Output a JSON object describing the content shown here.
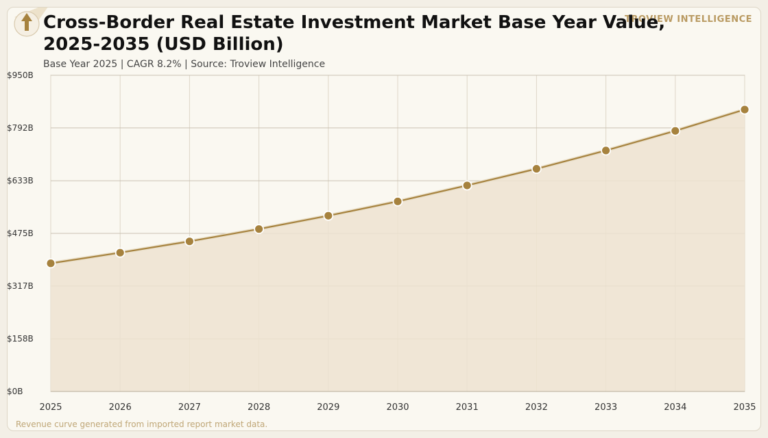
{
  "header": {
    "title": "Cross-Border Real Estate Investment Market Base Year Value, 2025-2035 (USD Billion)",
    "subtitle": "Base Year 2025 | CAGR 8.2% | Source: Troview Intelligence",
    "brand": "TROVIEW INTELLIGENCE"
  },
  "footer": {
    "note": "Revenue curve generated from imported report market data."
  },
  "icons": {
    "logo": "upload-arrow-icon"
  },
  "colors": {
    "line": "#a6823e",
    "marker": "#a6823e",
    "area_fill": "#ede3d1",
    "grid": "#c9c1b2",
    "background": "#faf8f1",
    "brand": "#b99a62"
  },
  "chart_data": {
    "type": "area",
    "title": "Cross-Border Real Estate Investment Market Base Year Value, 2025-2035 (USD Billion)",
    "subtitle": "Base Year 2025 | CAGR 8.2% | Source: Troview Intelligence",
    "xlabel": "",
    "ylabel": "",
    "x": [
      "2025",
      "2026",
      "2027",
      "2028",
      "2029",
      "2030",
      "2031",
      "2032",
      "2033",
      "2034",
      "2035"
    ],
    "values": [
      385,
      417,
      451,
      488,
      528,
      571,
      619,
      669,
      724,
      783,
      847
    ],
    "ylim": [
      0,
      950
    ],
    "yticks": [
      0,
      158,
      317,
      475,
      633,
      792,
      950
    ],
    "ytick_labels": [
      "$0B",
      "$158B",
      "$317B",
      "$475B",
      "$633B",
      "$792B",
      "$950B"
    ],
    "grid": true,
    "legend": "none"
  }
}
